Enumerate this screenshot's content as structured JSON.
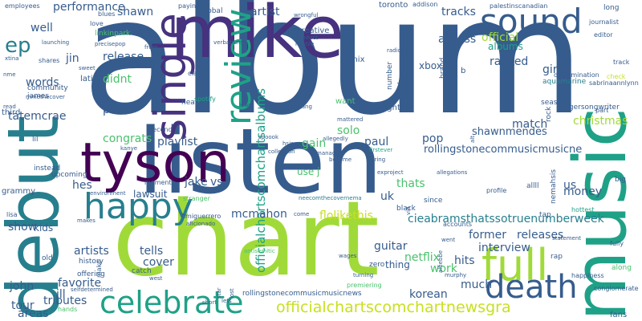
{
  "colors": {
    "background": "#ffffff",
    "palette": [
      "#440154",
      "#46327e",
      "#365c8d",
      "#277f8e",
      "#1fa187",
      "#4ac16d",
      "#a0da39",
      "#c8e020"
    ]
  },
  "words": {
    "album": "album",
    "listen": "listen",
    "chart": "chart",
    "mike": "mike",
    "debut": "debut",
    "music": "music",
    "tyson": "tyson",
    "single": "single",
    "review": "review",
    "sound": "sound",
    "happy": "happy",
    "celebrate": "celebrate",
    "death": "death",
    "full": "full",
    "officialchartscomchartnewsgra": "officialchartscomchartnewsgra",
    "officialchartscomchartsalbums": "officialchartscomchartsalbums",
    "cieabramsthatssotruenumberweek": "cieabramsthatssotruenumberweek",
    "rollingstonecommusicmusicne": "rollingstonecommusicmusicne",
    "shawnmendes": "shawnmendes",
    "performance": "performance",
    "shawn": "shawn",
    "release": "release",
    "artist": "artist",
    "tracks": "tracks",
    "official": "official",
    "albums": "albums",
    "access": "access",
    "ranked": "ranked",
    "girl": "girl",
    "christmas": "christmas",
    "match": "match",
    "playlist": "playlist",
    "congrats": "congrats",
    "paul": "paul",
    "gain": "gain",
    "pop": "pop",
    "solo": "solo",
    "uk": "uk",
    "thats": "thats",
    "us": "us",
    "money": "money",
    "jake": "jake",
    "vs": "vs",
    "mcmahon": "mcmahon",
    "flolikethis": "flolikethis",
    "former": "former",
    "releases": "releases",
    "interview": "interview",
    "guitar": "guitar",
    "netflix": "netflix",
    "hits": "hits",
    "work": "work",
    "much": "much",
    "korean": "korean",
    "artists": "artists",
    "cover": "cover",
    "favorite": "favorite",
    "tells": "tells",
    "tatemcrae": "tatemcrae",
    "words": "words",
    "jin": "jin",
    "well": "well",
    "ep": "ep",
    "hes": "hes",
    "lawsuit": "lawsuit",
    "show": "show",
    "kids": "kids",
    "paid": "paid",
    "didnt": "didnt",
    "latin": "latin",
    "creative": "creative",
    "toronto": "toronto",
    "xbox": "xbox",
    "remix": "remix",
    "fight": "fight",
    "tributes": "tributes",
    "tour": "tour",
    "areas": "areas",
    "john": "john",
    "ill": "ill",
    "fans": "fans",
    "grammy": "grammy",
    "rollingstonecommusicmusicnews": "rollingstonecommusicmusicnews",
    "singersongwriter": "singersongwriter",
    "aquamarine": "aquamarine",
    "season": "season",
    "rock": "rock",
    "conglomerate": "conglomerate",
    "happiness": "happiness",
    "along": "along",
    "b": "b",
    "want": "want",
    "number": "number",
    "brand": "brand",
    "thing": "thing",
    "use j": "use j",
    "allll": "allll",
    "big": "big",
    "tap": "tap",
    "rap": "rap",
    "hottest": "hottest",
    "profile": "profile",
    "since": "since",
    "accounts": "accounts",
    "black": "black",
    "offering": "offering",
    "make": "make",
    "catch": "catch",
    "zero": "zero",
    "history": "history",
    "old": "old",
    "james": "james",
    "community": "community",
    "shares": "shares",
    "blues": "blues",
    "love": "love",
    "linkinpark": "linkinpark",
    "global": "global",
    "paying": "paying",
    "employees": "employees",
    "palestinscanadian": "palestinscanadian",
    "addison": "addison",
    "long": "long",
    "journalist": "journalist",
    "editor": "editor",
    "track": "track",
    "check": "check",
    "sabrinaannlynn": "sabrinaannlynn",
    "discrimination": "discrimination",
    "part": "part",
    "wrongful": "wrongful",
    "conduct": "conduct",
    "hostile": "hostile",
    "radically": "radically",
    "launching": "launching",
    "precisepop": "precisepop",
    "front": "front",
    "verbatium": "verbatium",
    "xtina": "xtina",
    "nme": "nme",
    "sweet": "sweet",
    "mmethecover": "mmethecover",
    "read": "read",
    "third": "third",
    "lil": "lil",
    "hear": "hear",
    "claims": "claims",
    "spotify": "spotify",
    "second": "second",
    "kanye": "kanye",
    "lewd": "lewd",
    "kerrang": "kerrang",
    "mattered": "mattered",
    "spoook": "spoook",
    "hsis": "hsis",
    "allegedly": "allegedly",
    "collection": "collection",
    "manager": "manager",
    "firstever": "firstever",
    "become": "become",
    "bring": "bring",
    "obe": "obe",
    "exproject": "exproject",
    "allegations": "allegations",
    "nemahsis": "nemahsis",
    "retaliation": "retaliation",
    "durk": "durk",
    "instead": "instead",
    "upcoming": "upcoming",
    "environment": "environment",
    "moments": "moments",
    "stranger": "stranger",
    "fimiguerrero": "fimiguerrero",
    "aficionado": "aficionado",
    "come": "come",
    "neecomthecovernema": "neecomthecovernema",
    "lisa": "lisa",
    "makes": "makes",
    "antisemitic": "antisemitic",
    "wages": "wages",
    "went": "went",
    "statement": "statement",
    "fully": "fully",
    "star": "star",
    "lost": "lost",
    "short": "short",
    "murphy": "murphy",
    "premiering": "premiering",
    "turning": "turning",
    "west": "west",
    "hands": "hands",
    "selfdetermined": "selfdetermined",
    "alfiebbe": "alfiebbe",
    "alt": "alt",
    "vid": "vid",
    "lets": "lets"
  }
}
